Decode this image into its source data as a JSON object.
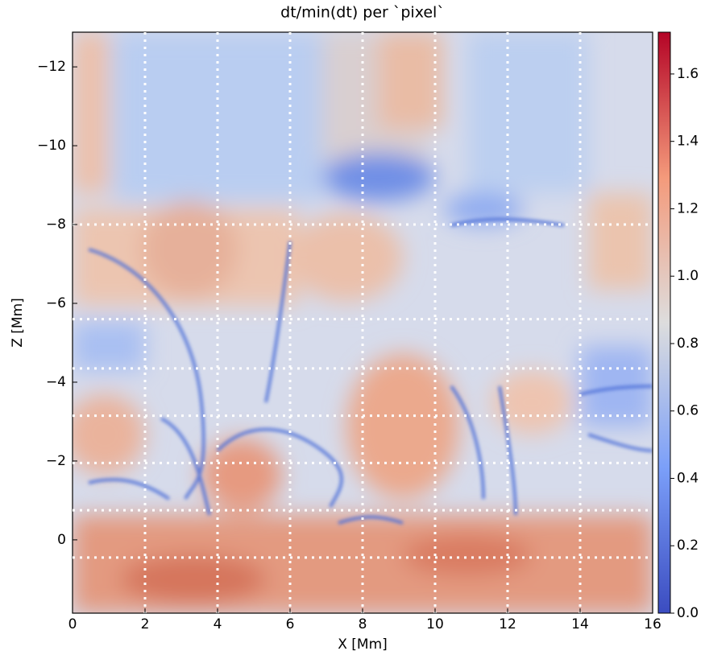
{
  "chart_data": {
    "type": "heatmap",
    "title": "dt/min(dt) per `pixel`",
    "x_label": "X [Mm]",
    "y_label": "Z [Mm]",
    "xlim": [
      0,
      16
    ],
    "xticks": [
      0,
      2,
      4,
      6,
      8,
      10,
      12,
      14,
      16
    ],
    "ylim": [
      -12.88,
      1.86
    ],
    "y_inverted": true,
    "yticks": [
      {
        "value": -12,
        "label": "−12"
      },
      {
        "value": -10,
        "label": "−10"
      },
      {
        "value": -8,
        "label": "−8"
      },
      {
        "value": -6,
        "label": "−6"
      },
      {
        "value": -4,
        "label": "−4"
      },
      {
        "value": -2,
        "label": "−2"
      },
      0
    ],
    "x_gridlines": [
      2,
      4,
      6,
      8,
      10,
      12,
      14
    ],
    "z_gridlines": [
      -8,
      -5.6,
      -4.35,
      -3.15,
      -1.95,
      -0.75,
      0.45
    ],
    "gridline_color": "#ffffff",
    "colormap": "coolwarm",
    "clim": [
      0,
      1.724
    ],
    "cticks": [
      {
        "value": 0,
        "label": "0.0"
      },
      0.2,
      0.4,
      0.6,
      0.8,
      {
        "value": 1,
        "label": "1.0"
      },
      1.2,
      1.4,
      1.6
    ]
  }
}
